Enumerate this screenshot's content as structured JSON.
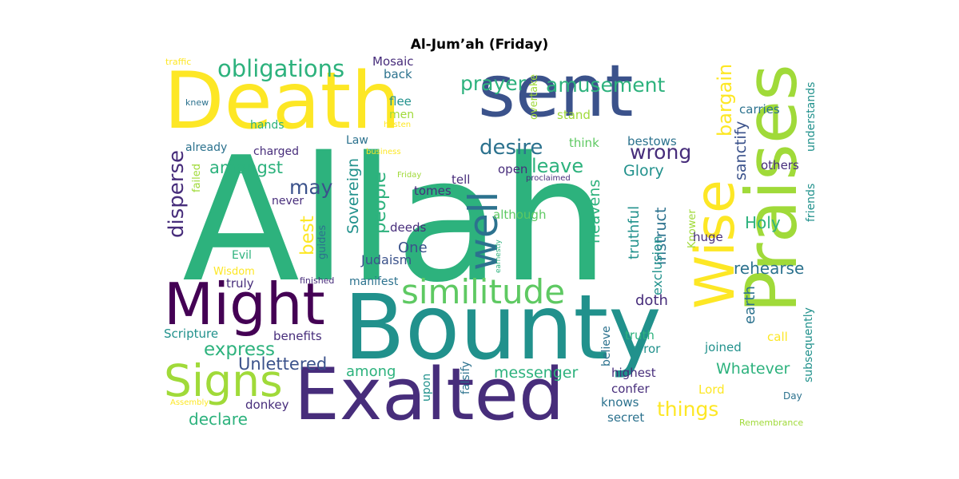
{
  "title": "Al-Jum’ah (Friday)",
  "palette": {
    "yellow": "#fde725",
    "lime": "#a0da39",
    "lightgreen": "#5ec962",
    "green": "#2db27d",
    "teal": "#21918c",
    "steel": "#2c728e",
    "blue": "#3b528b",
    "indigo": "#472d7b",
    "purple": "#440154",
    "paleyellow": "#e4e31a"
  },
  "words": [
    {
      "text": "Allah",
      "color": "green"
    },
    {
      "text": "Bounty",
      "color": "teal"
    },
    {
      "text": "Death",
      "color": "yellow"
    },
    {
      "text": "sent",
      "color": "blue"
    },
    {
      "text": "Exalted",
      "color": "indigo"
    },
    {
      "text": "Praises",
      "color": "lime"
    },
    {
      "text": "Might",
      "color": "purple"
    },
    {
      "text": "Wise",
      "color": "yellow"
    },
    {
      "text": "Signs",
      "color": "lime"
    },
    {
      "text": "well",
      "color": "steel"
    },
    {
      "text": "similitude",
      "color": "lightgreen"
    },
    {
      "text": "obligations",
      "color": "green"
    },
    {
      "text": "amusement",
      "color": "green"
    },
    {
      "text": "prayer",
      "color": "green"
    },
    {
      "text": "desire",
      "color": "steel"
    },
    {
      "text": "leave",
      "color": "green"
    },
    {
      "text": "wrong",
      "color": "indigo"
    },
    {
      "text": "Glory",
      "color": "teal"
    },
    {
      "text": "bargain",
      "color": "yellow"
    },
    {
      "text": "disperse",
      "color": "indigo"
    },
    {
      "text": "amongst",
      "color": "green"
    },
    {
      "text": "may",
      "color": "blue"
    },
    {
      "text": "people",
      "color": "green"
    },
    {
      "text": "best",
      "color": "yellow"
    },
    {
      "text": "Sovereign",
      "color": "teal"
    },
    {
      "text": "express",
      "color": "green"
    },
    {
      "text": "Unlettered",
      "color": "blue"
    },
    {
      "text": "messenger",
      "color": "green"
    },
    {
      "text": "things",
      "color": "yellow"
    },
    {
      "text": "Whatever",
      "color": "green"
    },
    {
      "text": "declare",
      "color": "green"
    },
    {
      "text": "among",
      "color": "green"
    },
    {
      "text": "Holy",
      "color": "green"
    },
    {
      "text": "sanctify",
      "color": "blue"
    },
    {
      "text": "rehearse",
      "color": "steel"
    },
    {
      "text": "earth",
      "color": "steel"
    },
    {
      "text": "instruct",
      "color": "steel"
    },
    {
      "text": "heavens",
      "color": "green"
    },
    {
      "text": "truthful",
      "color": "teal"
    },
    {
      "text": "exclusion",
      "color": "teal"
    },
    {
      "text": "doth",
      "color": "indigo"
    },
    {
      "text": "One",
      "color": "blue"
    },
    {
      "text": "Judaism",
      "color": "blue"
    },
    {
      "text": "deeds",
      "color": "indigo"
    },
    {
      "text": "tomes",
      "color": "indigo"
    },
    {
      "text": "tell",
      "color": "indigo"
    },
    {
      "text": "open",
      "color": "indigo"
    },
    {
      "text": "although",
      "color": "lightgreen"
    },
    {
      "text": "think",
      "color": "lightgreen"
    },
    {
      "text": "bestows",
      "color": "steel"
    },
    {
      "text": "others",
      "color": "indigo"
    },
    {
      "text": "carries",
      "color": "steel"
    },
    {
      "text": "understands",
      "color": "teal"
    },
    {
      "text": "friends",
      "color": "teal"
    },
    {
      "text": "Knower",
      "color": "lime"
    },
    {
      "text": "huge",
      "color": "indigo"
    },
    {
      "text": "truth",
      "color": "green"
    },
    {
      "text": "error",
      "color": "teal"
    },
    {
      "text": "joined",
      "color": "teal"
    },
    {
      "text": "call",
      "color": "yellow"
    },
    {
      "text": "highest",
      "color": "indigo"
    },
    {
      "text": "believe",
      "color": "steel"
    },
    {
      "text": "confer",
      "color": "indigo"
    },
    {
      "text": "knows",
      "color": "steel"
    },
    {
      "text": "secret",
      "color": "steel"
    },
    {
      "text": "Lord",
      "color": "yellow"
    },
    {
      "text": "subsequently",
      "color": "teal"
    },
    {
      "text": "Day",
      "color": "steel"
    },
    {
      "text": "Remembrance",
      "color": "lime"
    },
    {
      "text": "falsify",
      "color": "steel"
    },
    {
      "text": "upon",
      "color": "teal"
    },
    {
      "text": "donkey",
      "color": "indigo"
    },
    {
      "text": "Assembly",
      "color": "yellow"
    },
    {
      "text": "Scripture",
      "color": "teal"
    },
    {
      "text": "benefits",
      "color": "indigo"
    },
    {
      "text": "truly",
      "color": "indigo"
    },
    {
      "text": "finished",
      "color": "indigo"
    },
    {
      "text": "manifest",
      "color": "steel"
    },
    {
      "text": "Wisdom",
      "color": "yellow"
    },
    {
      "text": "Evil",
      "color": "green"
    },
    {
      "text": "guides",
      "color": "steel"
    },
    {
      "text": "never",
      "color": "indigo"
    },
    {
      "text": "charged",
      "color": "indigo"
    },
    {
      "text": "already",
      "color": "steel"
    },
    {
      "text": "failed",
      "color": "lime"
    },
    {
      "text": "Law",
      "color": "steel"
    },
    {
      "text": "business",
      "color": "yellow"
    },
    {
      "text": "Friday",
      "color": "lime"
    },
    {
      "text": "proclaimed",
      "color": "indigo"
    },
    {
      "text": "earnestly",
      "color": "green"
    },
    {
      "text": "hands",
      "color": "green"
    },
    {
      "text": "flee",
      "color": "teal"
    },
    {
      "text": "men",
      "color": "lime"
    },
    {
      "text": "hasten",
      "color": "yellow"
    },
    {
      "text": "Mosaic",
      "color": "indigo"
    },
    {
      "text": "back",
      "color": "steel"
    },
    {
      "text": "overtake",
      "color": "lime"
    },
    {
      "text": "stand",
      "color": "lime"
    },
    {
      "text": "knew",
      "color": "steel"
    },
    {
      "text": "traffic",
      "color": "yellow"
    }
  ]
}
